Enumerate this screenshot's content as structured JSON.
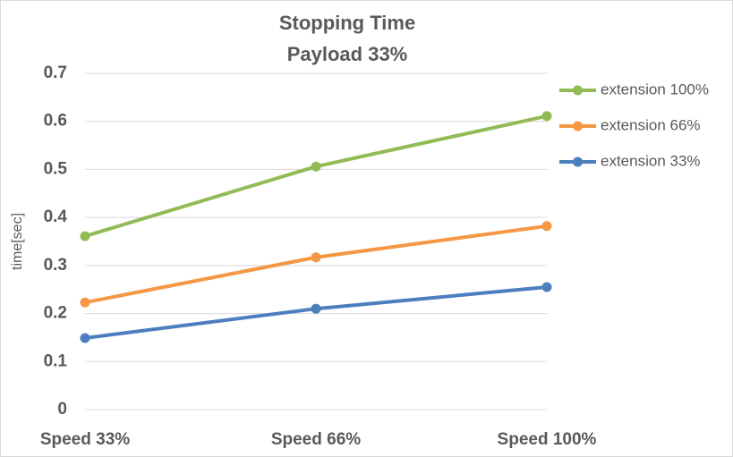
{
  "chart_data": {
    "type": "line",
    "title": "Stopping Time",
    "subtitle": "Payload 33%",
    "y_label": "time[sec]",
    "categories": [
      "Speed 33%",
      "Speed 66%",
      "Speed 100%"
    ],
    "series": [
      {
        "name": "extension 100%",
        "color": "#92bb56",
        "values": [
          0.361,
          0.506,
          0.611
        ]
      },
      {
        "name": "extension 66%",
        "color": "#f59744",
        "values": [
          0.223,
          0.317,
          0.382
        ]
      },
      {
        "name": "extension 33%",
        "color": "#4d7ebd",
        "values": [
          0.149,
          0.21,
          0.255
        ]
      }
    ],
    "ylim": [
      0,
      0.7
    ],
    "yticks": [
      0,
      0.1,
      0.2,
      0.3,
      0.4,
      0.5,
      0.6,
      0.7
    ],
    "grid": true,
    "legend": "right"
  }
}
